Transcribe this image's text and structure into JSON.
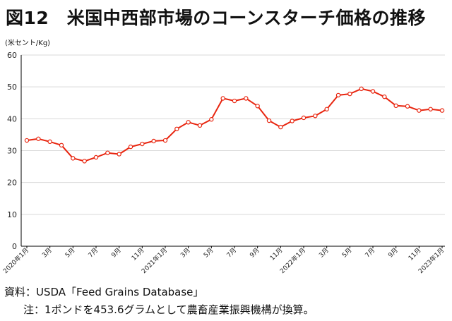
{
  "header": {
    "title": "図12　米国中西部市場のコーンスターチ価格の推移",
    "unit": "(米セント/Kg)"
  },
  "footer": {
    "source": "資料：USDA「Feed Grains Database」",
    "note": "注：1ポンドを453.6グラムとして農畜産業振興機構が換算。"
  },
  "colors": {
    "line": "#e8250f",
    "grid": "#d9d9d9",
    "axis": "#000000"
  },
  "chart_data": {
    "type": "line",
    "title": "図12　米国中西部市場のコーンスターチ価格の推移",
    "ylabel": "(米セント/Kg)",
    "xlabel": "",
    "ylim": [
      0,
      60
    ],
    "yticks": [
      0,
      10,
      20,
      30,
      40,
      50,
      60
    ],
    "grid": true,
    "legend": "none",
    "x": [
      "2020年1月",
      "2020年2月",
      "2020年3月",
      "2020年4月",
      "2020年5月",
      "2020年6月",
      "2020年7月",
      "2020年8月",
      "2020年9月",
      "2020年10月",
      "2020年11月",
      "2020年12月",
      "2021年1月",
      "2021年2月",
      "2021年3月",
      "2021年4月",
      "2021年5月",
      "2021年6月",
      "2021年7月",
      "2021年8月",
      "2021年9月",
      "2021年10月",
      "2021年11月",
      "2021年12月",
      "2022年1月",
      "2022年2月",
      "2022年3月",
      "2022年4月",
      "2022年5月",
      "2022年6月",
      "2022年7月",
      "2022年8月",
      "2022年9月",
      "2022年10月",
      "2022年11月",
      "2022年12月",
      "2023年1月"
    ],
    "xtick_labels": [
      {
        "index": 0,
        "label": "2020年1月"
      },
      {
        "index": 2,
        "label": "3月"
      },
      {
        "index": 4,
        "label": "5月"
      },
      {
        "index": 6,
        "label": "7月"
      },
      {
        "index": 8,
        "label": "9月"
      },
      {
        "index": 10,
        "label": "11月"
      },
      {
        "index": 12,
        "label": "2021年1月"
      },
      {
        "index": 14,
        "label": "3月"
      },
      {
        "index": 16,
        "label": "5月"
      },
      {
        "index": 18,
        "label": "7月"
      },
      {
        "index": 20,
        "label": "9月"
      },
      {
        "index": 22,
        "label": "11月"
      },
      {
        "index": 24,
        "label": "2022年1月"
      },
      {
        "index": 26,
        "label": "3月"
      },
      {
        "index": 28,
        "label": "5月"
      },
      {
        "index": 30,
        "label": "7月"
      },
      {
        "index": 32,
        "label": "9月"
      },
      {
        "index": 34,
        "label": "11月"
      },
      {
        "index": 36,
        "label": "2023年1月"
      }
    ],
    "series": [
      {
        "values": [
          33.2,
          33.7,
          32.8,
          31.7,
          27.6,
          26.7,
          27.9,
          29.3,
          28.9,
          31.2,
          32.1,
          33.0,
          33.2,
          36.8,
          38.9,
          37.9,
          39.8,
          46.4,
          45.6,
          46.4,
          44.0,
          39.4,
          37.4,
          39.3,
          40.3,
          40.9,
          43.0,
          47.4,
          47.8,
          49.4,
          48.6,
          46.9,
          44.1,
          43.9,
          42.6,
          43.0,
          42.6
        ]
      }
    ]
  }
}
